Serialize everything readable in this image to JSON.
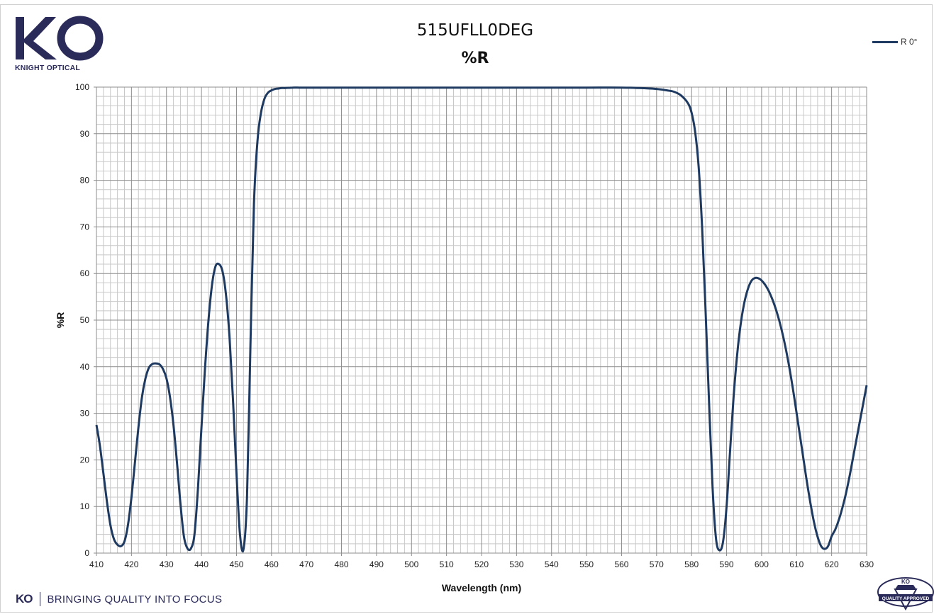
{
  "brand": {
    "logo_text": "KO",
    "logo_caption": "KNIGHT OPTICAL",
    "footer_mark": "KO",
    "footer_tagline": "BRINGING QUALITY INTO FOCUS",
    "badge_text": "QUALITY APPROVED",
    "badge_mark": "KO"
  },
  "colors": {
    "series": "#1f3a60",
    "grid_major": "#8c8c8c",
    "grid_minor": "#c8c8c8",
    "brand": "#2b2b5a"
  },
  "chart_data": {
    "type": "line",
    "title": "515UFLL0DEG",
    "subtitle": "%R",
    "xlabel": "Wavelength (nm)",
    "ylabel": "%R",
    "xlim": [
      410,
      630
    ],
    "ylim": [
      0,
      100
    ],
    "x_ticks": [
      410,
      420,
      430,
      440,
      450,
      460,
      470,
      480,
      490,
      500,
      510,
      520,
      530,
      540,
      550,
      560,
      570,
      580,
      590,
      600,
      610,
      620,
      630
    ],
    "y_ticks": [
      0,
      10,
      20,
      30,
      40,
      50,
      60,
      70,
      80,
      90,
      100
    ],
    "grid": true,
    "legend_position": "top-right",
    "series": [
      {
        "name": "R 0°",
        "x": [
          410,
          411,
          412,
          413,
          414,
          415,
          416,
          417,
          418,
          419,
          420,
          421,
          422,
          423,
          424,
          425,
          426,
          427,
          428,
          429,
          430,
          431,
          432,
          433,
          434,
          435,
          436,
          437,
          438,
          439,
          440,
          441,
          442,
          443,
          444,
          445,
          446,
          447,
          448,
          449,
          450,
          451,
          452,
          453,
          454,
          455,
          456,
          457,
          458,
          459,
          460,
          461,
          462,
          463,
          464,
          466,
          468,
          470,
          475,
          480,
          490,
          500,
          510,
          520,
          530,
          540,
          550,
          560,
          565,
          570,
          573,
          575,
          577,
          579,
          580,
          581,
          582,
          583,
          584,
          585,
          586,
          587,
          588,
          589,
          590,
          591,
          592,
          593,
          594,
          595,
          596,
          597,
          598,
          599,
          600,
          601,
          602,
          603,
          604,
          605,
          606,
          607,
          608,
          609,
          610,
          611,
          612,
          613,
          614,
          615,
          616,
          617,
          618,
          619,
          620,
          621,
          622,
          623,
          624,
          625,
          626,
          627,
          628,
          629,
          630
        ],
        "y": [
          27.5,
          23.0,
          17.0,
          11.0,
          6.0,
          3.0,
          1.8,
          1.5,
          2.5,
          6.0,
          12.0,
          19.5,
          27.0,
          33.5,
          37.5,
          39.8,
          40.6,
          40.7,
          40.5,
          39.5,
          37.5,
          33.5,
          27.5,
          19.5,
          10.5,
          3.5,
          1.0,
          1.0,
          4.0,
          14.0,
          27.0,
          39.5,
          50.0,
          57.5,
          61.5,
          62.0,
          60.5,
          55.5,
          46.5,
          33.0,
          17.0,
          4.0,
          0.8,
          12.0,
          45.0,
          75.0,
          88.5,
          94.5,
          97.5,
          98.8,
          99.3,
          99.6,
          99.7,
          99.8,
          99.8,
          99.9,
          99.9,
          99.9,
          99.9,
          99.9,
          99.9,
          99.9,
          99.9,
          99.9,
          99.9,
          99.9,
          99.9,
          99.9,
          99.8,
          99.6,
          99.3,
          99.0,
          98.2,
          96.5,
          94.5,
          90.5,
          83.0,
          70.0,
          52.0,
          32.0,
          14.0,
          3.0,
          0.6,
          2.5,
          10.0,
          22.0,
          33.5,
          42.5,
          49.0,
          53.5,
          56.5,
          58.3,
          59.0,
          59.0,
          58.5,
          57.6,
          56.3,
          54.6,
          52.5,
          50.0,
          47.0,
          43.5,
          39.5,
          35.0,
          30.0,
          25.0,
          20.0,
          15.0,
          10.5,
          6.5,
          3.5,
          1.5,
          0.9,
          1.5,
          3.6,
          5.0,
          7.0,
          9.5,
          12.5,
          16.0,
          20.0,
          24.0,
          28.0,
          32.0,
          36.0
        ]
      }
    ]
  }
}
